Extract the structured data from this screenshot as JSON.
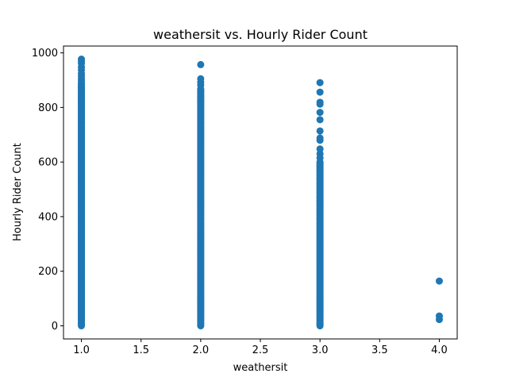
{
  "chart_data": {
    "type": "scatter",
    "title": "weathersit vs. Hourly Rider Count",
    "xlabel": "weathersit",
    "ylabel": "Hourly Rider Count",
    "xlim": [
      0.85,
      4.15
    ],
    "ylim": [
      -48,
      1025
    ],
    "xticks": [
      1.0,
      1.5,
      2.0,
      2.5,
      3.0,
      3.5,
      4.0
    ],
    "xtick_labels": [
      "1.0",
      "1.5",
      "2.0",
      "2.5",
      "3.0",
      "3.5",
      "4.0"
    ],
    "yticks": [
      0,
      200,
      400,
      600,
      800,
      1000
    ],
    "ytick_labels": [
      "0",
      "200",
      "400",
      "600",
      "800",
      "1000"
    ],
    "grid": false,
    "marker_color": "#1f77b4",
    "series": [
      {
        "points": [
          {
            "x": 1.0,
            "range": [
              0,
              890
            ],
            "step": 4
          },
          {
            "x": 1.0,
            "values": [
              977,
              970,
              962,
              948,
              938,
              925,
              915,
              905,
              897
            ]
          },
          {
            "x": 2.0,
            "range": [
              0,
              870
            ],
            "step": 4
          },
          {
            "x": 2.0,
            "values": [
              957,
              905,
              893,
              882
            ]
          },
          {
            "x": 3.0,
            "range": [
              0,
              600
            ],
            "step": 4
          },
          {
            "x": 3.0,
            "values": [
              891,
              856,
              819,
              812,
              782,
              755,
              714,
              688,
              680,
              648,
              630,
              615
            ]
          },
          {
            "x": 4.0,
            "values": [
              164,
              36,
              23
            ]
          }
        ]
      }
    ]
  }
}
